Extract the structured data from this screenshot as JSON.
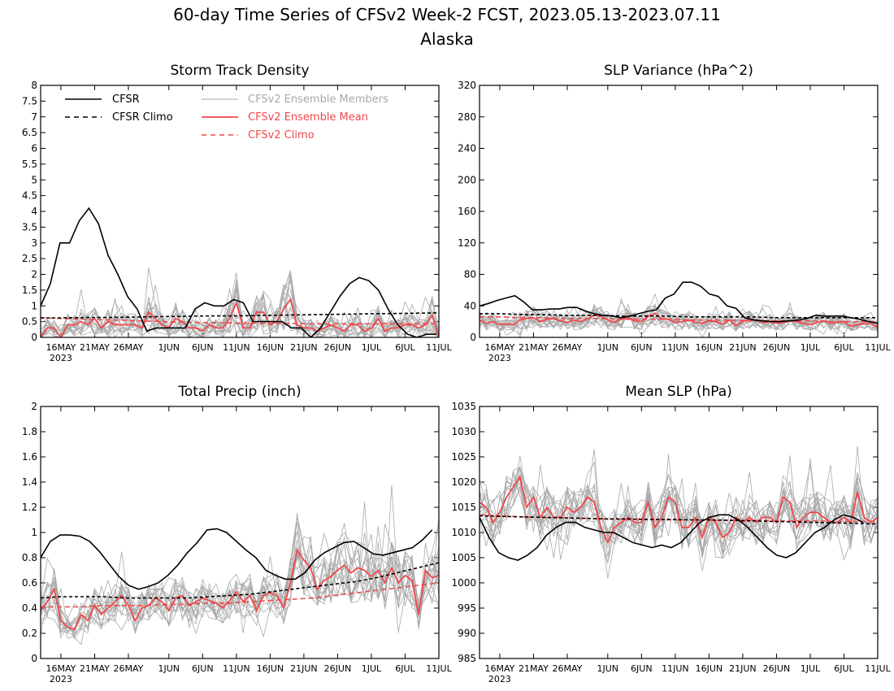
{
  "title": "60-day Time Series of CFSv2 Week-2 FCST, 2023.05.13-2023.07.11",
  "subtitle": "Alaska",
  "colors": {
    "cfsr": "#000000",
    "members": "#a9a9a9",
    "mean": "#f0484b"
  },
  "legend": {
    "cfsr": "CFSR",
    "cfsr_climo": "CFSR Climo",
    "members": "CFSv2 Ensemble Members",
    "ens_mean": "CFSv2 Ensemble Mean",
    "cfsv2_climo": "CFSv2 Climo"
  },
  "x_ticks": [
    "16MAY",
    "21MAY",
    "26MAY",
    "1JUN",
    "6JUN",
    "11JUN",
    "16JUN",
    "21JUN",
    "26JUN",
    "1JUL",
    "6JUL",
    "11JUL"
  ],
  "x_year_label": "2023",
  "chart_data": [
    {
      "type": "line",
      "title": "Storm Track Density",
      "xlabel": "",
      "ylabel": "",
      "x_start": "2023-05-13",
      "x_end": "2023-07-11",
      "ylim": [
        0,
        8
      ],
      "yticks": [
        "0",
        "0.5",
        "1",
        "1.5",
        "2",
        "2.5",
        "3",
        "3.5",
        "4",
        "4.5",
        "5",
        "5.5",
        "6",
        "6.5",
        "7",
        "7.5",
        "8"
      ],
      "series": [
        {
          "name": "CFSR",
          "style": "solid",
          "values": [
            1.0,
            1.7,
            3.0,
            3.0,
            3.7,
            4.1,
            3.6,
            2.6,
            2.0,
            1.3,
            0.9,
            0.2,
            0.3,
            0.3,
            0.3,
            0.3,
            0.9,
            1.1,
            1.0,
            1.0,
            1.2,
            1.1,
            0.5,
            0.5,
            0.5,
            0.5,
            0.3,
            0.3,
            0.0,
            0.3,
            0.8,
            1.3,
            1.7,
            1.9,
            1.8,
            1.5,
            0.9,
            0.4,
            0.1,
            0.0,
            0.1,
            0.1
          ]
        },
        {
          "name": "CFSR Climo",
          "style": "dashed",
          "values": [
            0.62,
            0.62,
            0.63,
            0.63,
            0.64,
            0.65,
            0.66,
            0.67,
            0.68,
            0.68,
            0.69,
            0.7,
            0.71,
            0.72,
            0.73,
            0.74,
            0.75,
            0.76,
            0.77,
            0.78
          ]
        },
        {
          "name": "CFSv2 Ensemble Mean",
          "style": "solid",
          "values": [
            0.0,
            0.3,
            0.3,
            0.0,
            0.4,
            0.4,
            0.5,
            0.4,
            0.6,
            0.3,
            0.5,
            0.4,
            0.4,
            0.4,
            0.4,
            0.3,
            0.8,
            0.6,
            0.4,
            0.3,
            0.6,
            0.5,
            0.3,
            0.3,
            0.2,
            0.4,
            0.3,
            0.3,
            0.6,
            1.1,
            0.3,
            0.3,
            0.8,
            0.8,
            0.4,
            0.5,
            0.9,
            1.2,
            0.4,
            0.3,
            0.3,
            0.2,
            0.3,
            0.4,
            0.3,
            0.2,
            0.4,
            0.4,
            0.2,
            0.3,
            0.6,
            0.2,
            0.3,
            0.3,
            0.4,
            0.4,
            0.3,
            0.4,
            0.7,
            0.0
          ]
        },
        {
          "name": "CFSv2 Climo",
          "style": "dashed",
          "values": [
            0.62,
            0.6,
            0.58,
            0.56,
            0.54,
            0.52,
            0.5,
            0.48,
            0.47,
            0.46,
            0.45,
            0.44,
            0.44,
            0.43,
            0.43,
            0.43,
            0.43,
            0.43,
            0.43,
            0.43
          ]
        }
      ]
    },
    {
      "type": "line",
      "title": "SLP Variance (hPa^2)",
      "xlabel": "",
      "ylabel": "",
      "x_start": "2023-05-13",
      "x_end": "2023-07-11",
      "ylim": [
        0,
        320
      ],
      "yticks": [
        "0",
        "40",
        "80",
        "120",
        "160",
        "200",
        "240",
        "280",
        "320"
      ],
      "series": [
        {
          "name": "CFSR",
          "style": "solid",
          "values": [
            40,
            43,
            47,
            50,
            53,
            45,
            35,
            35,
            36,
            36,
            38,
            38,
            33,
            30,
            28,
            27,
            25,
            27,
            30,
            33,
            35,
            50,
            55,
            70,
            70,
            65,
            55,
            52,
            40,
            37,
            25,
            22,
            21,
            20,
            20,
            21,
            22,
            24,
            28,
            27,
            27,
            27,
            25,
            23,
            20,
            18
          ]
        },
        {
          "name": "CFSR Climo",
          "style": "dashed",
          "values": [
            30,
            30,
            29,
            29,
            28,
            28,
            28,
            27,
            27,
            27,
            26,
            26,
            26,
            26,
            25,
            25,
            25,
            25,
            25,
            25
          ]
        },
        {
          "name": "CFSv2 Ensemble Mean",
          "style": "solid",
          "values": [
            22,
            18,
            20,
            16,
            17,
            16,
            22,
            24,
            25,
            20,
            23,
            24,
            21,
            19,
            22,
            20,
            24,
            28,
            27,
            22,
            19,
            23,
            25,
            21,
            20,
            27,
            30,
            24,
            23,
            19,
            20,
            22,
            19,
            18,
            21,
            20,
            17,
            22,
            15,
            20,
            23,
            22,
            19,
            20,
            18,
            19,
            21,
            20,
            18,
            16,
            19,
            21,
            18,
            19,
            20,
            14,
            16,
            18,
            17,
            13
          ]
        },
        {
          "name": "CFSv2 Climo",
          "style": "dashed",
          "values": [
            26,
            26,
            25,
            25,
            24,
            24,
            24,
            23,
            23,
            23,
            22,
            22,
            22,
            21,
            21,
            21,
            21,
            20,
            20,
            20
          ]
        }
      ]
    },
    {
      "type": "line",
      "title": "Total Precip (inch)",
      "xlabel": "",
      "ylabel": "",
      "x_start": "2023-05-13",
      "x_end": "2023-07-11",
      "ylim": [
        0,
        2
      ],
      "yticks": [
        "0",
        "0.2",
        "0.4",
        "0.6",
        "0.8",
        "1",
        "1.2",
        "1.4",
        "1.6",
        "1.8",
        "2"
      ],
      "series": [
        {
          "name": "CFSR",
          "style": "solid",
          "values": [
            0.8,
            0.93,
            0.98,
            0.98,
            0.97,
            0.93,
            0.85,
            0.75,
            0.65,
            0.58,
            0.55,
            0.57,
            0.6,
            0.66,
            0.74,
            0.84,
            0.92,
            1.02,
            1.03,
            1.0,
            0.93,
            0.86,
            0.8,
            0.7,
            0.66,
            0.63,
            0.63,
            0.68,
            0.78,
            0.84,
            0.88,
            0.92,
            0.93,
            0.88,
            0.83,
            0.82,
            0.84,
            0.86,
            0.88,
            0.94,
            1.02
          ]
        },
        {
          "name": "CFSR Climo",
          "style": "dashed",
          "values": [
            0.48,
            0.49,
            0.49,
            0.49,
            0.48,
            0.48,
            0.48,
            0.48,
            0.49,
            0.5,
            0.51,
            0.53,
            0.55,
            0.57,
            0.59,
            0.61,
            0.64,
            0.68,
            0.72,
            0.76
          ]
        },
        {
          "name": "CFSv2 Ensemble Mean",
          "style": "solid",
          "values": [
            0.38,
            0.45,
            0.55,
            0.3,
            0.25,
            0.23,
            0.35,
            0.3,
            0.42,
            0.35,
            0.4,
            0.45,
            0.5,
            0.42,
            0.3,
            0.4,
            0.42,
            0.48,
            0.45,
            0.38,
            0.48,
            0.5,
            0.42,
            0.45,
            0.48,
            0.46,
            0.44,
            0.4,
            0.46,
            0.53,
            0.45,
            0.5,
            0.38,
            0.5,
            0.52,
            0.5,
            0.4,
            0.6,
            0.86,
            0.78,
            0.72,
            0.55,
            0.62,
            0.65,
            0.7,
            0.74,
            0.68,
            0.72,
            0.7,
            0.65,
            0.7,
            0.6,
            0.72,
            0.6,
            0.66,
            0.62,
            0.35,
            0.7,
            0.64,
            0.66
          ]
        },
        {
          "name": "CFSv2 Climo",
          "style": "dashed",
          "values": [
            0.41,
            0.41,
            0.41,
            0.42,
            0.42,
            0.42,
            0.43,
            0.43,
            0.44,
            0.44,
            0.45,
            0.46,
            0.47,
            0.48,
            0.5,
            0.52,
            0.54,
            0.56,
            0.58,
            0.6
          ]
        }
      ]
    },
    {
      "type": "line",
      "title": "Mean SLP (hPa)",
      "xlabel": "",
      "ylabel": "",
      "x_start": "2023-05-13",
      "x_end": "2023-07-11",
      "ylim": [
        985,
        1035
      ],
      "yticks": [
        "985",
        "990",
        "995",
        "1000",
        "1005",
        "1010",
        "1015",
        "1020",
        "1025",
        "1030",
        "1035"
      ],
      "series": [
        {
          "name": "CFSR",
          "style": "solid",
          "values": [
            1013,
            1009,
            1006,
            1005,
            1004.5,
            1005.5,
            1007,
            1009.5,
            1011,
            1012,
            1012,
            1011,
            1010.5,
            1010,
            1010,
            1009,
            1008,
            1007.5,
            1007,
            1007.5,
            1007,
            1008,
            1010,
            1012,
            1013,
            1013.5,
            1013.5,
            1012.5,
            1011,
            1009,
            1007,
            1005.5,
            1005,
            1006,
            1008,
            1010,
            1011,
            1012.5,
            1013.5,
            1013,
            1012
          ]
        },
        {
          "name": "CFSR Climo",
          "style": "dashed",
          "values": [
            1013.3,
            1013.2,
            1013.1,
            1013.0,
            1012.9,
            1012.8,
            1012.7,
            1012.7,
            1012.6,
            1012.6,
            1012.5,
            1012.5,
            1012.4,
            1012.3,
            1012.2,
            1012.1,
            1012.0,
            1011.9,
            1011.8,
            1011.7
          ]
        },
        {
          "name": "CFSv2 Ensemble Mean",
          "style": "solid",
          "values": [
            1016,
            1015,
            1012,
            1014,
            1017,
            1019,
            1021,
            1015,
            1017,
            1013,
            1015,
            1013,
            1013,
            1015,
            1014,
            1015,
            1017,
            1016,
            1011,
            1008,
            1011,
            1012,
            1013,
            1012,
            1012,
            1016,
            1011,
            1013,
            1017,
            1016,
            1011,
            1011,
            1013,
            1009,
            1013,
            1012,
            1009,
            1010,
            1013,
            1012,
            1013,
            1012,
            1013,
            1013,
            1012,
            1017,
            1016,
            1011,
            1013,
            1014,
            1014,
            1013,
            1012,
            1012,
            1013,
            1012,
            1018,
            1013,
            1012,
            1013
          ]
        },
        {
          "name": "CFSv2 Climo",
          "style": "dashed",
          "values": [
            1013.5,
            1013.3,
            1013.1,
            1013.0,
            1012.9,
            1012.8,
            1012.7,
            1012.6,
            1012.6,
            1012.5,
            1012.5,
            1012.4,
            1012.4,
            1012.4,
            1012.3,
            1012.3,
            1012.3,
            1012.2,
            1012.2,
            1012.2
          ]
        }
      ]
    }
  ]
}
